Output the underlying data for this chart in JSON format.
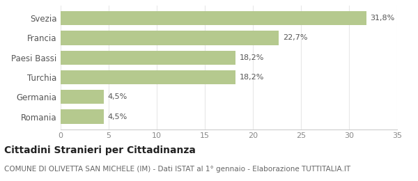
{
  "categories": [
    "Romania",
    "Germania",
    "Turchia",
    "Paesi Bassi",
    "Francia",
    "Svezia"
  ],
  "values": [
    4.5,
    4.5,
    18.2,
    18.2,
    22.7,
    31.8
  ],
  "labels": [
    "4,5%",
    "4,5%",
    "18,2%",
    "18,2%",
    "22,7%",
    "31,8%"
  ],
  "bar_color": "#b5c98e",
  "xlim": [
    0,
    35
  ],
  "xticks": [
    0,
    5,
    10,
    15,
    20,
    25,
    30,
    35
  ],
  "title": "Cittadini Stranieri per Cittadinanza",
  "subtitle": "COMUNE DI OLIVETTA SAN MICHELE (IM) - Dati ISTAT al 1° gennaio - Elaborazione TUTTITALIA.IT",
  "title_fontsize": 10,
  "subtitle_fontsize": 7.5,
  "label_fontsize": 8,
  "tick_fontsize": 8,
  "ytick_fontsize": 8.5,
  "background_color": "#ffffff",
  "bar_edge_color": "none",
  "grid_color": "#e8e8e8",
  "spine_color": "#cccccc"
}
